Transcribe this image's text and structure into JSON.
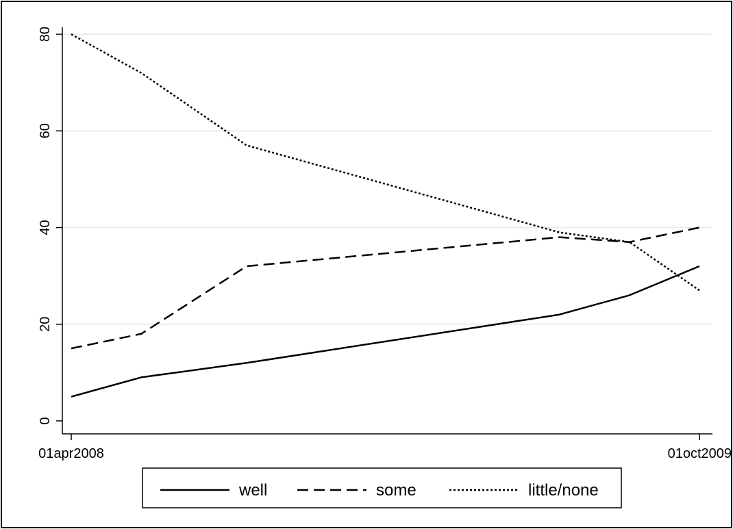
{
  "chart_data": {
    "type": "line",
    "title": "",
    "xlabel": "",
    "ylabel": "",
    "x": [
      "01apr2008",
      "01jun2008",
      "01sep2008",
      "01jun2009",
      "01aug2009",
      "01oct2009"
    ],
    "x_ticks": [
      "01apr2008",
      "01oct2009"
    ],
    "y_ticks": [
      "0",
      "20",
      "40",
      "60",
      "80"
    ],
    "xlim": [
      "01apr2008",
      "01oct2009"
    ],
    "ylim": [
      0,
      80
    ],
    "grid": "horizontal",
    "legend_position": "bottom",
    "series": [
      {
        "name": "well",
        "dash": "solid",
        "values": [
          5,
          9,
          12,
          22,
          26,
          32
        ]
      },
      {
        "name": "some",
        "dash": "dashed",
        "values": [
          15,
          18,
          32,
          38,
          37,
          40
        ]
      },
      {
        "name": "little/none",
        "dash": "dotted",
        "values": [
          80,
          72,
          57,
          39,
          37,
          27
        ]
      }
    ],
    "colors": {
      "line": "#000000",
      "grid": "#ebebeb",
      "background": "#ffffff"
    }
  }
}
